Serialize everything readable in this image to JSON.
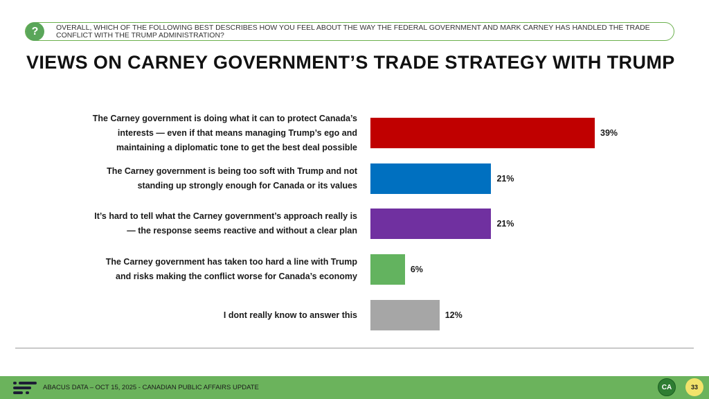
{
  "question": {
    "icon": "?",
    "text": "OVERALL, WHICH OF THE FOLLOWING BEST DESCRIBES HOW YOU FEEL ABOUT THE WAY THE FEDERAL GOVERNMENT AND MARK CARNEY HAS HANDLED THE TRADE CONFLICT WITH THE TRUMP ADMINISTRATION?"
  },
  "title": "VIEWS ON CARNEY GOVERNMENT’S TRADE STRATEGY WITH TRUMP",
  "chart_data": {
    "type": "bar",
    "orientation": "horizontal",
    "title": "VIEWS ON CARNEY GOVERNMENT’S TRADE STRATEGY WITH TRUMP",
    "categories": [
      "The Carney government is doing what it can to protect Canada’s interests — even if that means managing Trump’s ego and maintaining a diplomatic tone to get the best deal possible",
      "The Carney government is being too soft with Trump and not standing up strongly enough for Canada or its values",
      "It’s hard to tell what the Carney government’s approach really is — the response seems reactive and without a clear plan",
      "The Carney government has taken too hard a line with Trump and risks making the conflict worse for Canada’s economy",
      "I dont really know to answer this"
    ],
    "values": [
      39,
      21,
      21,
      6,
      12
    ],
    "value_labels": [
      "39%",
      "21%",
      "21%",
      "6%",
      "12%"
    ],
    "colors": [
      "#c00000",
      "#0070c0",
      "#7030a0",
      "#63b35f",
      "#a6a6a6"
    ],
    "xlim": [
      0,
      100
    ],
    "grid": false,
    "legend": "none"
  },
  "footer": {
    "source": "ABACUS DATA – OCT 15, 2025 - CANADIAN PUBLIC AFFAIRS UPDATE",
    "badge": "CA",
    "page": "33"
  }
}
